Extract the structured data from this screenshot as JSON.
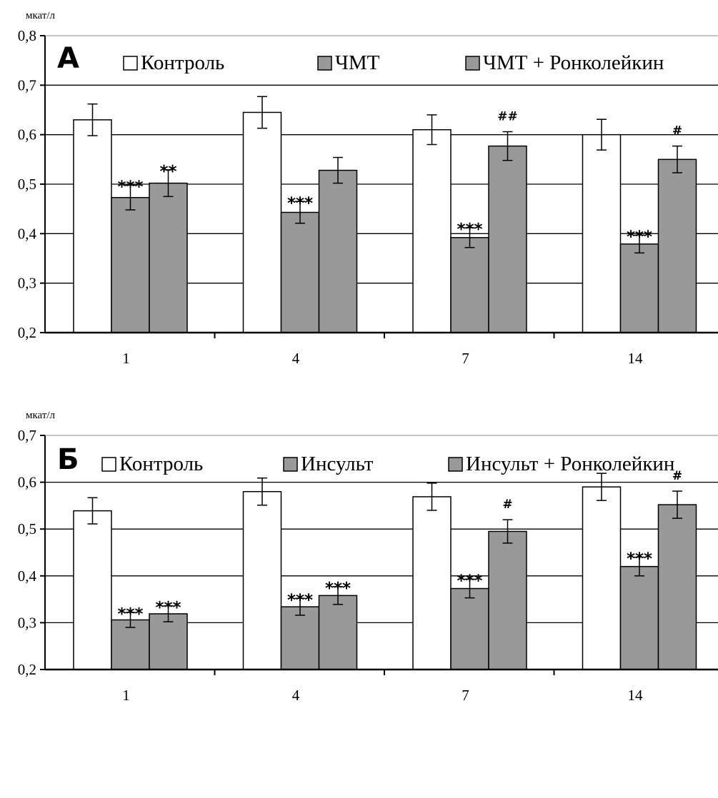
{
  "colors": {
    "control": "#ffffff",
    "treated": "#999999",
    "line": "#000000"
  },
  "chart_data": [
    {
      "type": "bar",
      "panel_label": "А",
      "unit": "мкат/л",
      "categories": [
        "1",
        "4",
        "7",
        "14"
      ],
      "ylim": [
        0.2,
        0.8
      ],
      "y_ticks": [
        "0,2",
        "0,3",
        "0,4",
        "0,5",
        "0,6",
        "0,7",
        "0,8"
      ],
      "grid": true,
      "legend_position": "top",
      "legend": [
        "Контроль",
        "ЧМТ",
        "ЧМТ + Ронколейкин"
      ],
      "series": [
        {
          "name": "Контроль",
          "values": [
            0.63,
            0.645,
            0.61,
            0.6
          ],
          "errors": [
            0.032,
            0.032,
            0.03,
            0.031
          ],
          "annotations": [
            "",
            "",
            "",
            ""
          ]
        },
        {
          "name": "ЧМТ",
          "values": [
            0.473,
            0.443,
            0.392,
            0.379
          ],
          "errors": [
            0.025,
            0.022,
            0.02,
            0.018
          ],
          "annotations": [
            "***",
            "***",
            "***",
            "***"
          ]
        },
        {
          "name": "ЧМТ + Ронколейкин",
          "values": [
            0.502,
            0.528,
            0.577,
            0.55
          ],
          "errors": [
            0.027,
            0.026,
            0.029,
            0.027
          ],
          "annotations": [
            "**",
            "",
            "##",
            "#"
          ]
        }
      ]
    },
    {
      "type": "bar",
      "panel_label": "Б",
      "unit": "мкат/л",
      "categories": [
        "1",
        "4",
        "7",
        "14"
      ],
      "ylim": [
        0.2,
        0.7
      ],
      "y_ticks": [
        "0,2",
        "0,3",
        "0,4",
        "0,5",
        "0,6",
        "0,7"
      ],
      "grid": true,
      "legend_position": "top",
      "legend": [
        "Контроль",
        "Инсульт",
        "Инсульт + Ронколейкин"
      ],
      "series": [
        {
          "name": "Контроль",
          "values": [
            0.539,
            0.58,
            0.569,
            0.59
          ],
          "errors": [
            0.028,
            0.029,
            0.029,
            0.029
          ],
          "annotations": [
            "",
            "",
            "",
            ""
          ]
        },
        {
          "name": "Инсульт",
          "values": [
            0.306,
            0.334,
            0.373,
            0.42
          ],
          "errors": [
            0.016,
            0.018,
            0.02,
            0.02
          ],
          "annotations": [
            "***",
            "***",
            "***",
            "***"
          ]
        },
        {
          "name": "Инсульт + Ронколейкин",
          "values": [
            0.319,
            0.358,
            0.495,
            0.552
          ],
          "errors": [
            0.017,
            0.019,
            0.025,
            0.029
          ],
          "annotations": [
            "***",
            "***",
            "#",
            "#"
          ]
        }
      ]
    }
  ]
}
